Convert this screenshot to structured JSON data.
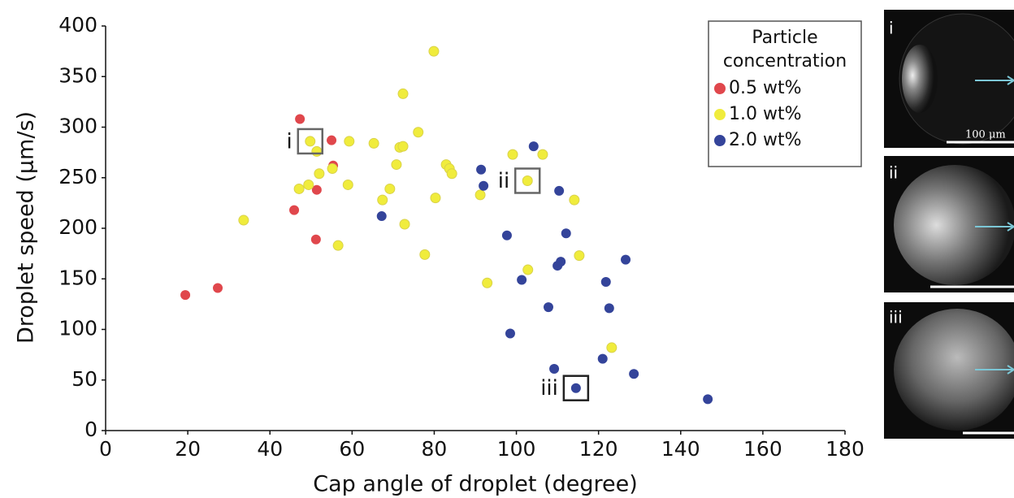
{
  "chart_data": {
    "type": "scatter",
    "x_label": "Cap angle of droplet (degree)",
    "y_label": "Droplet speed (μm/s)",
    "xlim": [
      0,
      180
    ],
    "xticks": [
      0,
      20,
      40,
      60,
      80,
      100,
      120,
      140,
      160,
      180
    ],
    "ylim": [
      0,
      400
    ],
    "yticks": [
      0,
      50,
      100,
      150,
      200,
      250,
      300,
      350,
      400
    ],
    "grid": false,
    "legend_title": [
      "Particle",
      "concentration"
    ],
    "legend_position": "upper right",
    "series": [
      {
        "name": "0.5 wt%",
        "color": "#e0474c",
        "x": [
          19.4,
          27.3,
          47.3,
          55.0,
          55.4,
          51.4,
          45.9,
          51.2
        ],
        "values": [
          134,
          141,
          308,
          287,
          262,
          238,
          218,
          189
        ]
      },
      {
        "name": "1.0 wt%",
        "color": "#f0ec3c",
        "x": [
          33.6,
          47.1,
          49.4,
          49.8,
          51.4,
          52.0,
          55.2,
          56.6,
          59.0,
          59.3,
          65.3,
          67.4,
          69.2,
          70.8,
          71.6,
          72.4,
          72.4,
          72.8,
          76.1,
          77.7,
          79.9,
          80.3,
          82.9,
          83.7,
          84.3,
          91.2,
          92.9,
          99.1,
          102.7,
          102.8,
          106.4,
          114.1,
          115.3,
          123.2
        ],
        "values": [
          208,
          239,
          243,
          286,
          276,
          254,
          259,
          183,
          243,
          286,
          284,
          228,
          239,
          263,
          280,
          281,
          333,
          204,
          295,
          174,
          375,
          230,
          263,
          259,
          254,
          233,
          146,
          273,
          247,
          159,
          273,
          228,
          173,
          82
        ]
      },
      {
        "name": "2.0 wt%",
        "color": "#34449a",
        "x": [
          67.2,
          91.4,
          92.0,
          97.7,
          98.5,
          101.3,
          104.2,
          107.8,
          109.2,
          110.0,
          110.4,
          110.8,
          112.1,
          114.5,
          121.0,
          121.8,
          122.6,
          126.6,
          128.6,
          146.6
        ],
        "values": [
          212,
          258,
          242,
          193,
          96,
          149,
          281,
          122,
          61,
          163,
          237,
          167,
          195,
          42,
          71,
          147,
          121,
          169,
          56,
          31
        ]
      }
    ],
    "annotations": [
      {
        "label": "i",
        "x": 49.8,
        "y": 286
      },
      {
        "label": "ii",
        "x": 102.7,
        "y": 247
      },
      {
        "label": "iii",
        "x": 114.5,
        "y": 42
      }
    ]
  },
  "panels": [
    {
      "label": "i",
      "scale_bar": "100 μm"
    },
    {
      "label": "ii"
    },
    {
      "label": "iii"
    }
  ]
}
